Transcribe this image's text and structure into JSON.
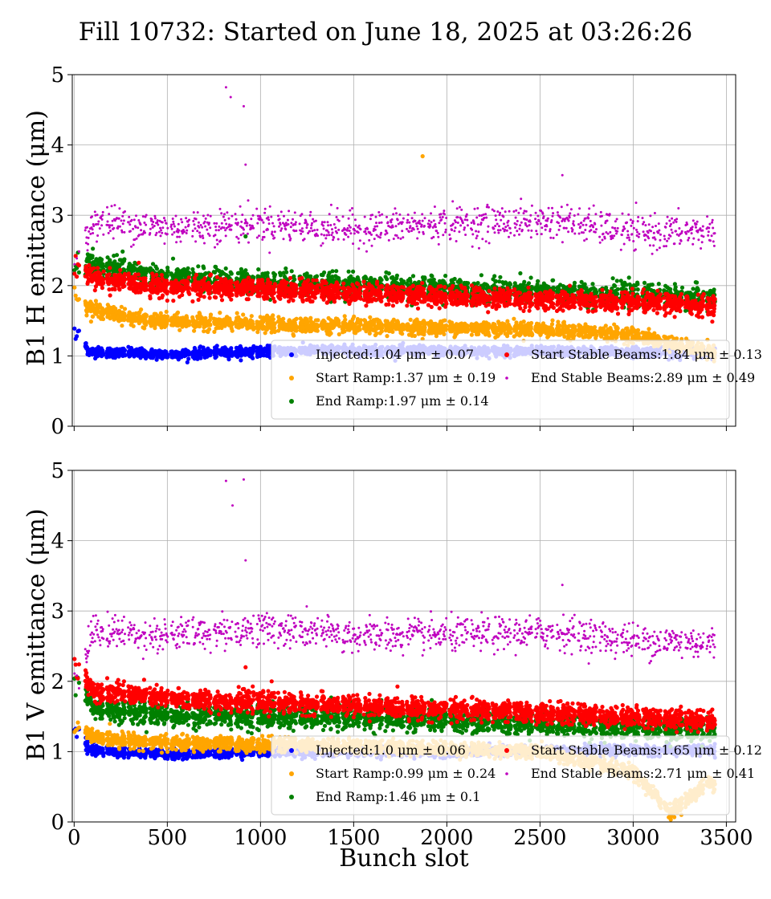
{
  "page": {
    "title": "Fill 10732: Started on June 18, 2025 at 03:26:26",
    "xlabel": "Bunch slot"
  },
  "chart_data": [
    {
      "type": "scatter",
      "ylabel": "B1 H emittance (μm)",
      "xlim": [
        -10,
        3550
      ],
      "ylim": [
        0,
        5
      ],
      "x_ticks": [
        0,
        500,
        1000,
        1500,
        2000,
        2500,
        3000,
        3500
      ],
      "y_ticks": [
        0,
        1,
        2,
        3,
        4,
        5
      ],
      "grid": true,
      "legend_position": "lower-right",
      "series": [
        {
          "name": "Injected:1.04 μm ± 0.07",
          "color": "#0000ff",
          "mean": 1.04,
          "std": 0.07,
          "marker": "dot"
        },
        {
          "name": "Start Ramp:1.37 μm ± 0.19",
          "color": "#ffa500",
          "mean": 1.37,
          "std": 0.19,
          "marker": "dot"
        },
        {
          "name": "End Ramp:1.97 μm ± 0.14",
          "color": "#008000",
          "mean": 1.97,
          "std": 0.14,
          "marker": "dot"
        },
        {
          "name": "Start Stable Beams:1.84 μm ± 0.13",
          "color": "#ff0000",
          "mean": 1.84,
          "std": 0.13,
          "marker": "dot"
        },
        {
          "name": "End Stable Beams:2.89 μm ± 0.49",
          "color": "#bf00bf",
          "mean": 2.89,
          "std": 0.49,
          "marker": "small"
        }
      ],
      "approx_trend_start": {
        "Injected": [
          [
            30,
            1.28
          ],
          [
            80,
            1.06
          ],
          [
            500,
            1.02
          ],
          [
            800,
            1.05
          ],
          [
            1300,
            1.08
          ],
          [
            3400,
            1.05
          ]
        ],
        "Start Ramp": [
          [
            20,
            1.8
          ],
          [
            100,
            1.66
          ],
          [
            400,
            1.5
          ],
          [
            1000,
            1.45
          ],
          [
            1500,
            1.42
          ],
          [
            2500,
            1.38
          ],
          [
            3000,
            1.3
          ],
          [
            3400,
            1.05
          ]
        ],
        "End Ramp": [
          [
            20,
            2.3
          ],
          [
            100,
            2.3
          ],
          [
            500,
            2.1
          ],
          [
            1000,
            2.05
          ],
          [
            1500,
            2.0
          ],
          [
            2500,
            1.9
          ],
          [
            3400,
            1.82
          ]
        ],
        "Start Stable Beams": [
          [
            20,
            2.3
          ],
          [
            100,
            2.1
          ],
          [
            500,
            1.98
          ],
          [
            1000,
            1.95
          ],
          [
            1500,
            1.9
          ],
          [
            2500,
            1.8
          ],
          [
            3400,
            1.72
          ]
        ],
        "End Stable Beams": [
          [
            30,
            2.35
          ],
          [
            100,
            2.92
          ],
          [
            500,
            2.82
          ],
          [
            1000,
            2.88
          ],
          [
            1500,
            2.8
          ],
          [
            2000,
            2.88
          ],
          [
            2600,
            2.92
          ],
          [
            3000,
            2.75
          ],
          [
            3400,
            2.77
          ]
        ]
      },
      "outliers": [
        {
          "series": "End Stable Beams",
          "x": 815,
          "y": 4.82
        },
        {
          "series": "End Stable Beams",
          "x": 840,
          "y": 4.68
        },
        {
          "series": "End Stable Beams",
          "x": 910,
          "y": 4.55
        },
        {
          "series": "End Stable Beams",
          "x": 920,
          "y": 3.72
        },
        {
          "series": "End Stable Beams",
          "x": 2620,
          "y": 3.57
        },
        {
          "series": "Start Ramp",
          "x": 1870,
          "y": 3.84
        },
        {
          "series": "End Ramp",
          "x": 920,
          "y": 2.7
        }
      ]
    },
    {
      "type": "scatter",
      "ylabel": "B1 V emittance (μm)",
      "xlabel": "Bunch slot",
      "xlim": [
        -10,
        3550
      ],
      "ylim": [
        0,
        5
      ],
      "x_ticks": [
        0,
        500,
        1000,
        1500,
        2000,
        2500,
        3000,
        3500
      ],
      "y_ticks": [
        0,
        1,
        2,
        3,
        4,
        5
      ],
      "grid": true,
      "legend_position": "lower-right",
      "series": [
        {
          "name": "Injected:1.0 μm ± 0.06",
          "color": "#0000ff",
          "mean": 1.0,
          "std": 0.06,
          "marker": "dot"
        },
        {
          "name": "Start Ramp:0.99 μm ± 0.24",
          "color": "#ffa500",
          "mean": 0.99,
          "std": 0.24,
          "marker": "dot"
        },
        {
          "name": "End Ramp:1.46 μm ± 0.1",
          "color": "#008000",
          "mean": 1.46,
          "std": 0.1,
          "marker": "dot"
        },
        {
          "name": "Start Stable Beams:1.65 μm ± 0.12",
          "color": "#ff0000",
          "mean": 1.65,
          "std": 0.12,
          "marker": "dot"
        },
        {
          "name": "End Stable Beams:2.71 μm ± 0.41",
          "color": "#bf00bf",
          "mean": 2.71,
          "std": 0.41,
          "marker": "small"
        }
      ],
      "approx_trend_start": {
        "Injected": [
          [
            30,
            1.3
          ],
          [
            80,
            1.02
          ],
          [
            500,
            0.96
          ],
          [
            1000,
            1.0
          ],
          [
            2000,
            1.0
          ],
          [
            3400,
            1.02
          ]
        ],
        "Start Ramp": [
          [
            20,
            1.4
          ],
          [
            100,
            1.2
          ],
          [
            500,
            1.12
          ],
          [
            1500,
            1.08
          ],
          [
            2500,
            1.0
          ],
          [
            3000,
            0.7
          ],
          [
            3200,
            0.15
          ],
          [
            3400,
            0.55
          ]
        ],
        "End Ramp": [
          [
            20,
            2.0
          ],
          [
            100,
            1.62
          ],
          [
            500,
            1.52
          ],
          [
            1500,
            1.48
          ],
          [
            2500,
            1.4
          ],
          [
            3400,
            1.3
          ]
        ],
        "Start Stable Beams": [
          [
            20,
            2.2
          ],
          [
            100,
            1.88
          ],
          [
            500,
            1.75
          ],
          [
            1500,
            1.65
          ],
          [
            2500,
            1.55
          ],
          [
            3400,
            1.45
          ]
        ],
        "End Stable Beams": [
          [
            30,
            2.1
          ],
          [
            100,
            2.72
          ],
          [
            500,
            2.65
          ],
          [
            1000,
            2.75
          ],
          [
            1500,
            2.65
          ],
          [
            2000,
            2.65
          ],
          [
            2600,
            2.7
          ],
          [
            3000,
            2.58
          ],
          [
            3400,
            2.55
          ]
        ]
      },
      "outliers": [
        {
          "series": "End Stable Beams",
          "x": 815,
          "y": 4.85
        },
        {
          "series": "End Stable Beams",
          "x": 850,
          "y": 4.5
        },
        {
          "series": "End Stable Beams",
          "x": 910,
          "y": 4.87
        },
        {
          "series": "End Stable Beams",
          "x": 920,
          "y": 3.72
        },
        {
          "series": "End Stable Beams",
          "x": 2620,
          "y": 3.37
        },
        {
          "series": "Start Stable Beams",
          "x": 920,
          "y": 2.2
        },
        {
          "series": "Start Stable Beams",
          "x": 1060,
          "y": 2.0
        }
      ]
    }
  ]
}
